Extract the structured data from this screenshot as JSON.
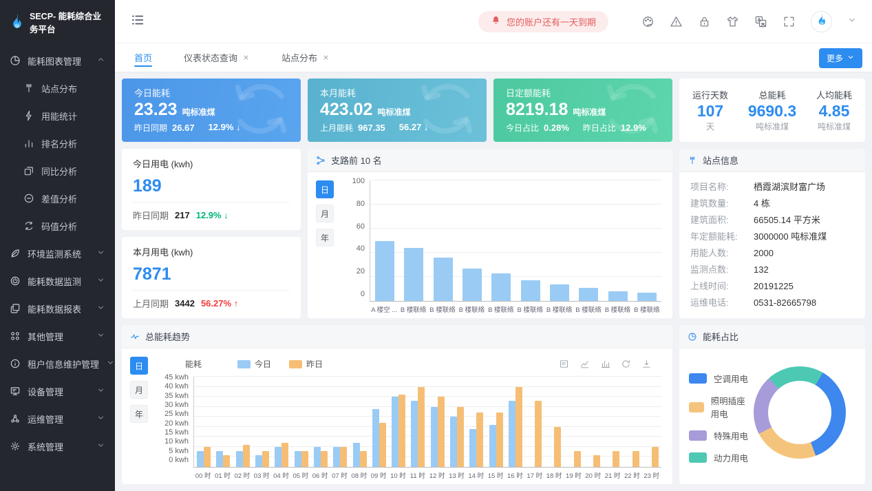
{
  "app": {
    "name": "SECP- 能耗综合业务平台"
  },
  "topbar": {
    "alert_text": "您的账户还有一天到期",
    "icons": [
      "palette",
      "warning",
      "lock",
      "tshirt",
      "translate",
      "fullscreen"
    ]
  },
  "tabs": {
    "items": [
      {
        "label": "首页",
        "active": true,
        "closable": false
      },
      {
        "label": "仪表状态查询",
        "active": false,
        "closable": true
      },
      {
        "label": "站点分布",
        "active": false,
        "closable": true
      }
    ],
    "more_label": "更多"
  },
  "sidebar": {
    "items": [
      {
        "label": "能耗图表管理",
        "icon": "pie",
        "expanded": true,
        "children": [
          {
            "label": "站点分布",
            "icon": "antenna"
          },
          {
            "label": "用能统计",
            "icon": "bolt"
          },
          {
            "label": "排名分析",
            "icon": "bars"
          },
          {
            "label": "同比分析",
            "icon": "overlap"
          },
          {
            "label": "差值分析",
            "icon": "minus-circle"
          },
          {
            "label": "码值分析",
            "icon": "loop"
          }
        ]
      },
      {
        "label": "环境监测系统",
        "icon": "leaf"
      },
      {
        "label": "能耗数据监测",
        "icon": "power"
      },
      {
        "label": "能耗数据报表",
        "icon": "report"
      },
      {
        "label": "其他管理",
        "icon": "grid4"
      },
      {
        "label": "租户信息维护管理",
        "icon": "info"
      },
      {
        "label": "设备管理",
        "icon": "monitor"
      },
      {
        "label": "运维管理",
        "icon": "nodes"
      },
      {
        "label": "系统管理",
        "icon": "gear"
      }
    ]
  },
  "stat_cards": [
    {
      "title": "今日能耗",
      "value": "23.23",
      "unit": "吨标准煤",
      "sub": [
        {
          "label": "昨日同期",
          "value": "26.67"
        },
        {
          "label": "",
          "value": "12.9%",
          "arrow": "↓"
        }
      ],
      "color_from": "#4c96e8",
      "color_to": "#5aa5ee"
    },
    {
      "title": "本月能耗",
      "value": "423.02",
      "unit": "吨标准煤",
      "sub": [
        {
          "label": "上月能耗",
          "value": "967.35"
        },
        {
          "label": "",
          "value": "56.27",
          "arrow": "↓"
        }
      ],
      "color_from": "#58b2cf",
      "color_to": "#6cc1d9"
    },
    {
      "title": "日定额能耗",
      "value": "8219.18",
      "unit": "吨标准煤",
      "sub": [
        {
          "label": "今日占比",
          "value": "0.28%"
        },
        {
          "label": "昨日占比",
          "value": "12.9%"
        }
      ],
      "color_from": "#4cc9a0",
      "color_to": "#5dd5ad"
    }
  ],
  "summary_card": {
    "items": [
      {
        "label": "运行天数",
        "value": "107",
        "unit": "天"
      },
      {
        "label": "总能耗",
        "value": "9690.3",
        "unit": "吨标准煤"
      },
      {
        "label": "人均能耗",
        "value": "4.85",
        "unit": "吨标准煤"
      }
    ]
  },
  "usage_cards": [
    {
      "title": "今日用电 (kwh)",
      "value": "189",
      "compare_label": "昨日同期",
      "compare_value": "217",
      "pct": "12.9%",
      "arrow": "↓",
      "trend": "green"
    },
    {
      "title": "本月用电 (kwh)",
      "value": "7871",
      "compare_label": "上月同期",
      "compare_value": "3442",
      "pct": "56.27%",
      "arrow": "↑",
      "trend": "red"
    }
  ],
  "branch_panel": {
    "title": "支路前 10 名",
    "toggles": [
      "日",
      "月",
      "年"
    ],
    "active_toggle": "日"
  },
  "site_panel": {
    "title": "站点信息",
    "rows": [
      {
        "label": "项目名称:",
        "value": "栖霞湖滨财富广场"
      },
      {
        "label": "建筑数量:",
        "value": "4 栋"
      },
      {
        "label": "建筑面积:",
        "value": "66505.14 平方米"
      },
      {
        "label": "年定额能耗:",
        "value": "3000000 吨标准煤"
      },
      {
        "label": "用能人数:",
        "value": "2000"
      },
      {
        "label": "监测点数:",
        "value": "132"
      },
      {
        "label": "上线时间:",
        "value": "20191225"
      },
      {
        "label": "运维电话:",
        "value": "0531-82665798"
      }
    ]
  },
  "trend_panel": {
    "title": "总能耗趋势",
    "toggles": [
      "日",
      "月",
      "年"
    ],
    "active_toggle": "日",
    "axis_name": "能耗",
    "toolbox": [
      "dataview",
      "linechart",
      "barchart",
      "refresh",
      "download"
    ]
  },
  "pie_panel": {
    "title": "能耗占比"
  },
  "chart_data": [
    {
      "id": "branch_top10",
      "type": "bar",
      "title": "支路前 10 名",
      "categories": [
        "A 楼空 ...",
        "B 楼联络",
        "B 楼联络",
        "B 楼联络",
        "B 楼联络",
        "B 楼联络",
        "B 楼联络",
        "B 楼联络",
        "B 楼联络",
        "B 楼联络"
      ],
      "values": [
        50,
        44,
        36,
        27,
        23,
        17,
        14,
        11,
        8,
        7
      ],
      "bar_color": "#9acbf5",
      "ylim": [
        0,
        100
      ],
      "ytick_step": 20,
      "yunit": "",
      "grid": true
    },
    {
      "id": "energy_trend",
      "type": "bar",
      "title": "总能耗趋势",
      "x": [
        "00 时",
        "01 时",
        "02 时",
        "03 时",
        "04 时",
        "05 时",
        "06 时",
        "07 时",
        "08 时",
        "09 时",
        "10 时",
        "11 时",
        "12 时",
        "13 时",
        "14 时",
        "15 时",
        "16 时",
        "17 时",
        "18 时",
        "19 时",
        "20 时",
        "21 时",
        "22 时",
        "23 时"
      ],
      "series": [
        {
          "name": "今日",
          "color": "#9acbf5",
          "values": [
            8,
            8,
            8,
            6,
            10,
            8,
            10,
            10,
            12,
            29,
            35,
            33,
            30,
            25,
            19,
            21,
            33,
            0,
            0,
            0,
            0,
            0,
            0,
            0
          ]
        },
        {
          "name": "昨日",
          "color": "#f6be75",
          "values": [
            10,
            6,
            11,
            8,
            12,
            8,
            8,
            10,
            8,
            22,
            36,
            40,
            35,
            30,
            27,
            27,
            40,
            33,
            20,
            8,
            6,
            8,
            8,
            10
          ]
        }
      ],
      "ylabel": "能耗",
      "yunit": "kwh",
      "ylim": [
        0,
        45
      ],
      "ytick_step": 5,
      "grid": true,
      "legend_position": "top"
    },
    {
      "id": "energy_share",
      "type": "pie",
      "title": "能耗占比",
      "start_angle": 30,
      "segments": [
        {
          "label": "空调用电",
          "color": "#3d87ee",
          "value": 36
        },
        {
          "label": "照明插座用电",
          "color": "#f5c47c",
          "value": 23
        },
        {
          "label": "特殊用电",
          "color": "#a79bd9",
          "value": 21
        },
        {
          "label": "动力用电",
          "color": "#4dc9b3",
          "value": 20
        }
      ]
    }
  ]
}
